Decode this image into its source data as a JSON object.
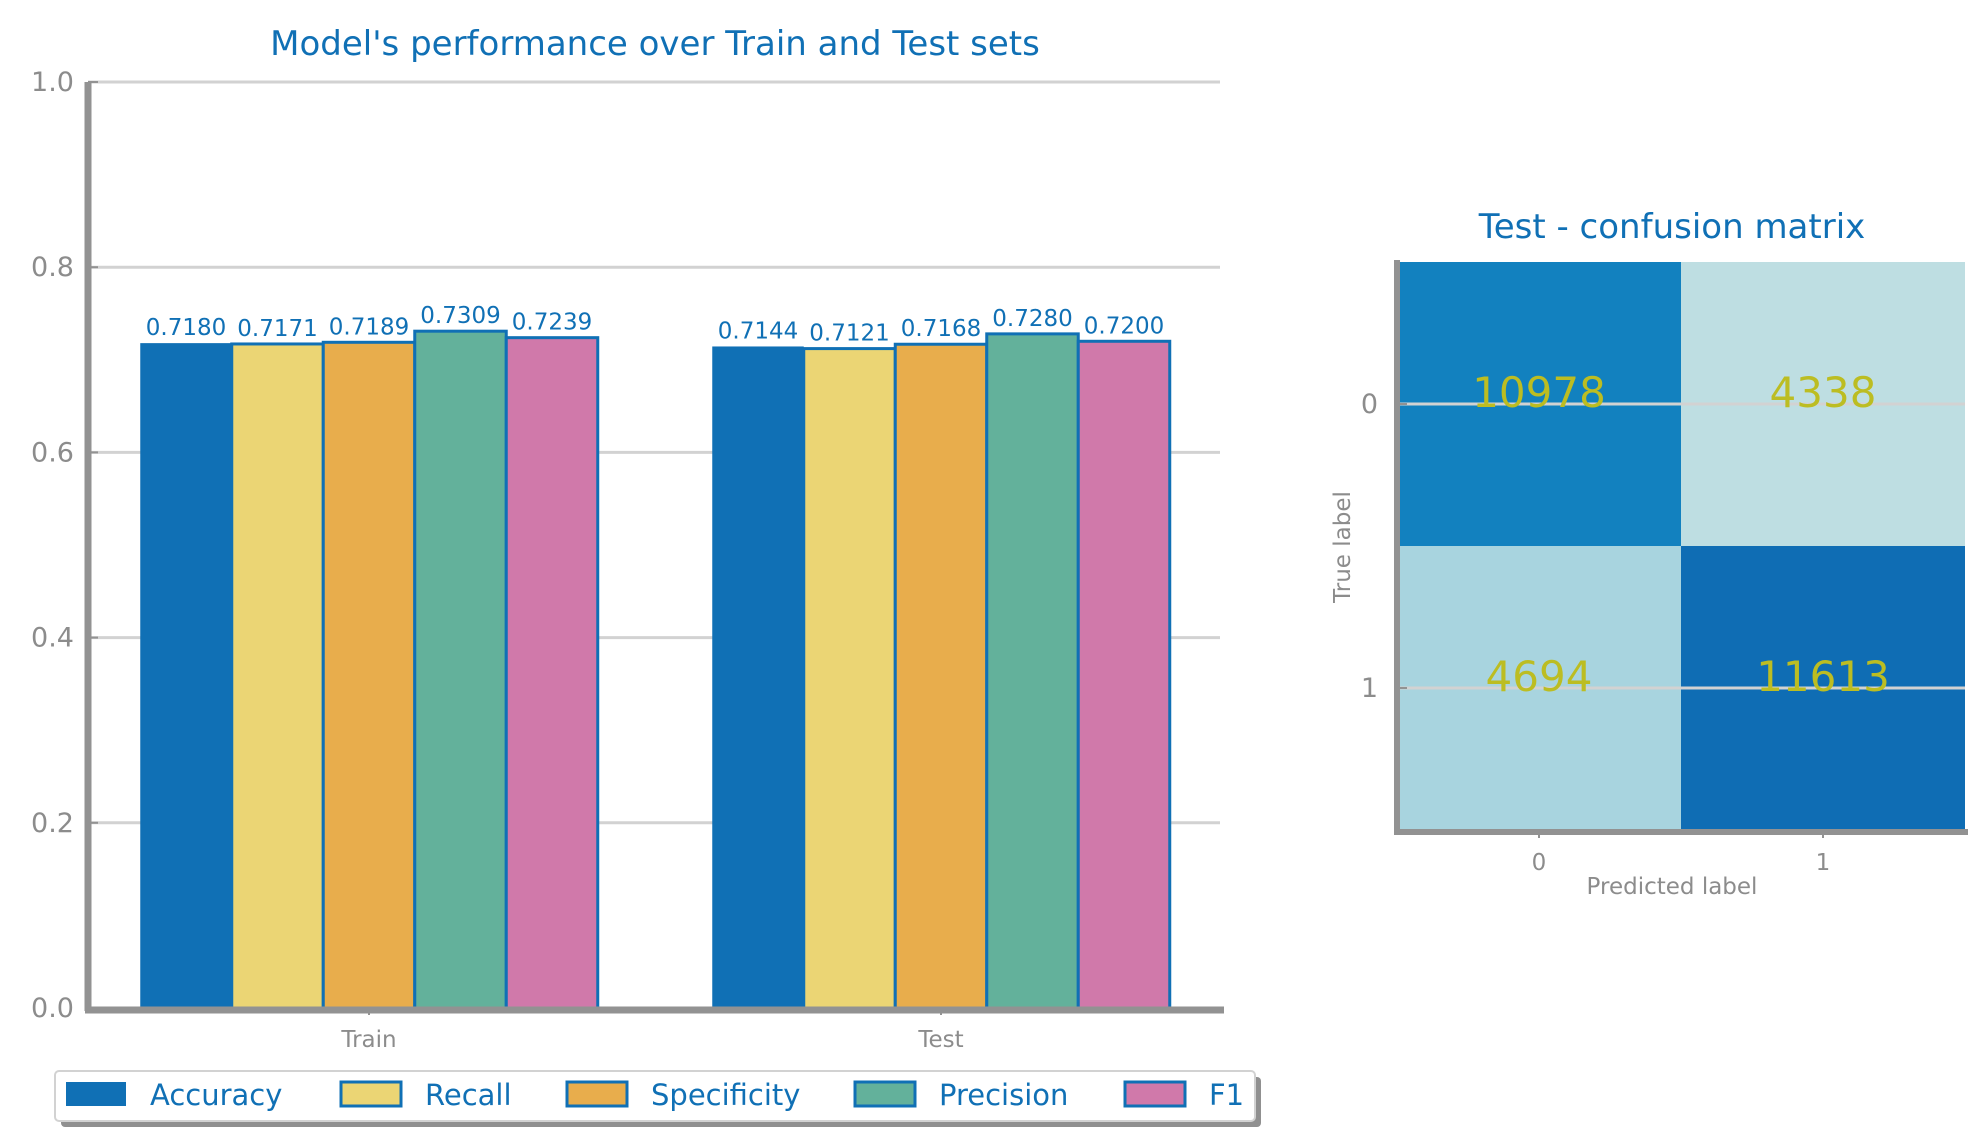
{
  "chart_data": [
    {
      "type": "bar",
      "title": "Model's performance over Train and Test sets",
      "categories": [
        "Train",
        "Test"
      ],
      "series": [
        {
          "name": "Accuracy",
          "values": [
            0.718,
            0.7144
          ],
          "labels": [
            "0.7180",
            "0.7144"
          ],
          "color": "#1070b5"
        },
        {
          "name": "Recall",
          "values": [
            0.7171,
            0.7121
          ],
          "labels": [
            "0.7171",
            "0.7121"
          ],
          "color": "#ebd574"
        },
        {
          "name": "Specificity",
          "values": [
            0.7189,
            0.7168
          ],
          "labels": [
            "0.7189",
            "0.7168"
          ],
          "color": "#e8ad4c"
        },
        {
          "name": "Precision",
          "values": [
            0.7309,
            0.728
          ],
          "labels": [
            "0.7309",
            "0.7280"
          ],
          "color": "#63b19b"
        },
        {
          "name": "F1",
          "values": [
            0.7239,
            0.72
          ],
          "labels": [
            "0.7239",
            "0.7200"
          ],
          "color": "#d079aa"
        }
      ],
      "ylim": [
        0,
        1.0
      ],
      "yticks": [
        "0.0",
        "0.2",
        "0.4",
        "0.6",
        "0.8",
        "1.0"
      ],
      "grid": true,
      "legend_position": "bottom"
    },
    {
      "type": "heatmap",
      "title": "Test - confusion matrix",
      "xlabel": "Predicted label",
      "ylabel": "True label",
      "x_ticks": [
        "0",
        "1"
      ],
      "y_ticks": [
        "0",
        "1"
      ],
      "matrix": [
        [
          10978,
          4338
        ],
        [
          4694,
          11613
        ]
      ],
      "cell_colors": [
        [
          "#1281bf",
          "#bedee2"
        ],
        [
          "#a8d4df",
          "#0f6db4"
        ]
      ]
    }
  ],
  "colors": {
    "accent": "#1070b5",
    "axis": "#929292",
    "grid": "#d2d2d2",
    "annotation": "#bcbd22"
  }
}
